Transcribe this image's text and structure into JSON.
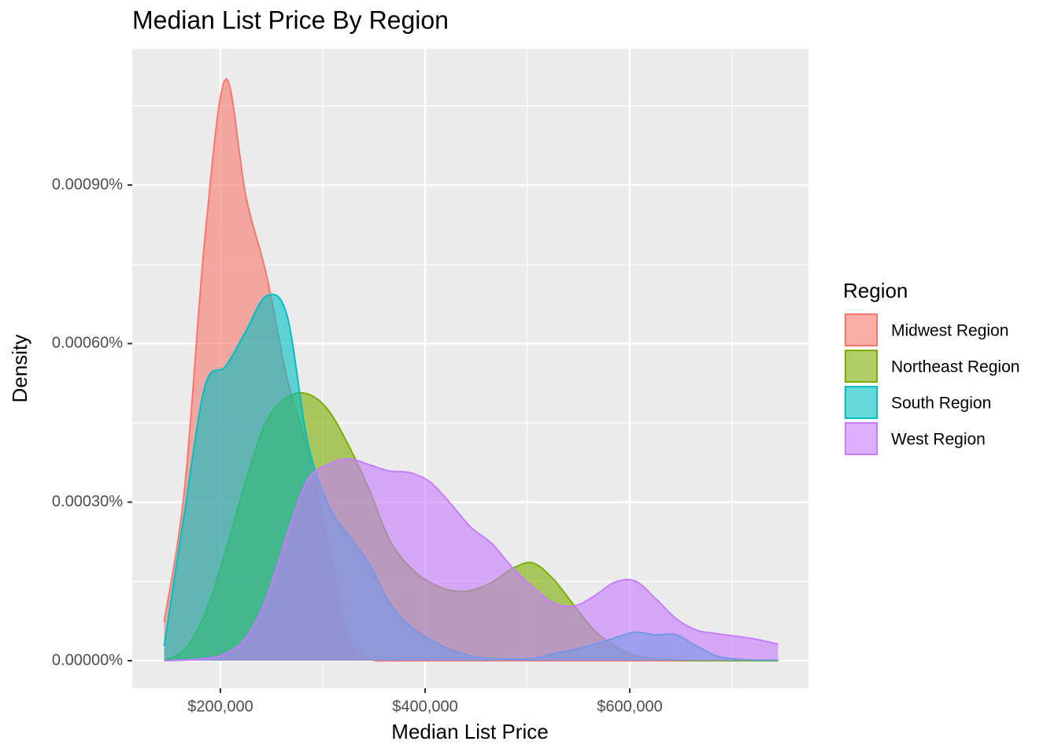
{
  "chart_data": {
    "type": "density",
    "title": "Median List Price By Region",
    "x_label": "Median List Price",
    "y_label": "Density",
    "legend_title": "Region",
    "legend_position": "right",
    "grid": true,
    "fill_opacity": 0.6,
    "x": [
      145000,
      165000,
      185000,
      205000,
      225000,
      245000,
      265000,
      285000,
      305000,
      325000,
      345000,
      365000,
      385000,
      405000,
      425000,
      445000,
      465000,
      485000,
      505000,
      525000,
      545000,
      565000,
      585000,
      605000,
      625000,
      645000,
      665000,
      685000,
      705000,
      725000,
      745000
    ],
    "series": [
      {
        "name": "Midwest Region",
        "color": "#F8766D",
        "values": [
          7.3e-05,
          0.000325,
          0.000803,
          0.0011,
          0.000878,
          0.00073,
          0.000535,
          0.0004,
          0.000222,
          4.3e-05,
          4e-06,
          0,
          0,
          0,
          0,
          0,
          0,
          0,
          0,
          0,
          0,
          0,
          0,
          0,
          0,
          0,
          0,
          0,
          0,
          0,
          0
        ]
      },
      {
        "name": "Northeast Region",
        "color": "#7CAE00",
        "values": [
          1e-06,
          2.1e-05,
          8.8e-05,
          0.000207,
          0.000341,
          0.000453,
          0.000498,
          0.000505,
          0.000475,
          0.000408,
          0.000326,
          0.00023,
          0.000177,
          0.000148,
          0.000133,
          0.000133,
          0.000148,
          0.000174,
          0.000185,
          0.000155,
          0.000106,
          5.8e-05,
          2.8e-05,
          1e-05,
          4e-06,
          1e-06,
          0,
          0,
          0,
          0,
          0
        ]
      },
      {
        "name": "South Region",
        "color": "#00BFC4",
        "values": [
          2.8e-05,
          0.000282,
          0.00052,
          0.000557,
          0.000624,
          0.00069,
          0.000654,
          0.000416,
          0.000297,
          0.000237,
          0.000185,
          0.00011,
          6.6e-05,
          4e-05,
          2.1e-05,
          9e-06,
          4e-06,
          3e-06,
          4e-06,
          1.3e-05,
          2.1e-05,
          3.1e-05,
          4.3e-05,
          5.4e-05,
          4.9e-05,
          4.9e-05,
          2.8e-05,
          9e-06,
          3e-06,
          1e-06,
          1e-06
        ]
      },
      {
        "name": "West Region",
        "color": "#C77CFF",
        "values": [
          0,
          1e-06,
          4e-06,
          1.3e-05,
          4.3e-05,
          0.000118,
          0.000237,
          0.000341,
          0.000371,
          0.000382,
          0.000371,
          0.000359,
          0.000356,
          0.000338,
          0.000297,
          0.000252,
          0.000222,
          0.000177,
          0.00014,
          0.00011,
          0.000103,
          0.000122,
          0.000148,
          0.000151,
          0.000118,
          8e-05,
          5.8e-05,
          5.1e-05,
          4.6e-05,
          4e-05,
          3.1e-05
        ]
      }
    ],
    "xlim": [
      113846,
      774615
    ],
    "ylim": [
      -5.22e-05,
      0.0011578
    ],
    "xticks": [
      {
        "value": 200000,
        "label": "$200,000"
      },
      {
        "value": 400000,
        "label": "$400,000"
      },
      {
        "value": 600000,
        "label": "$600,000"
      }
    ],
    "yticks": [
      {
        "value": 0,
        "label": "0.00000%"
      },
      {
        "value": 0.0003,
        "label": "0.00030%"
      },
      {
        "value": 0.0006,
        "label": "0.00060%"
      },
      {
        "value": 0.0009,
        "label": "0.00090%"
      }
    ],
    "xminor": [
      300000,
      500000,
      700000
    ],
    "yminor": [
      0.00015,
      0.00045,
      0.00075,
      0.00105
    ]
  }
}
